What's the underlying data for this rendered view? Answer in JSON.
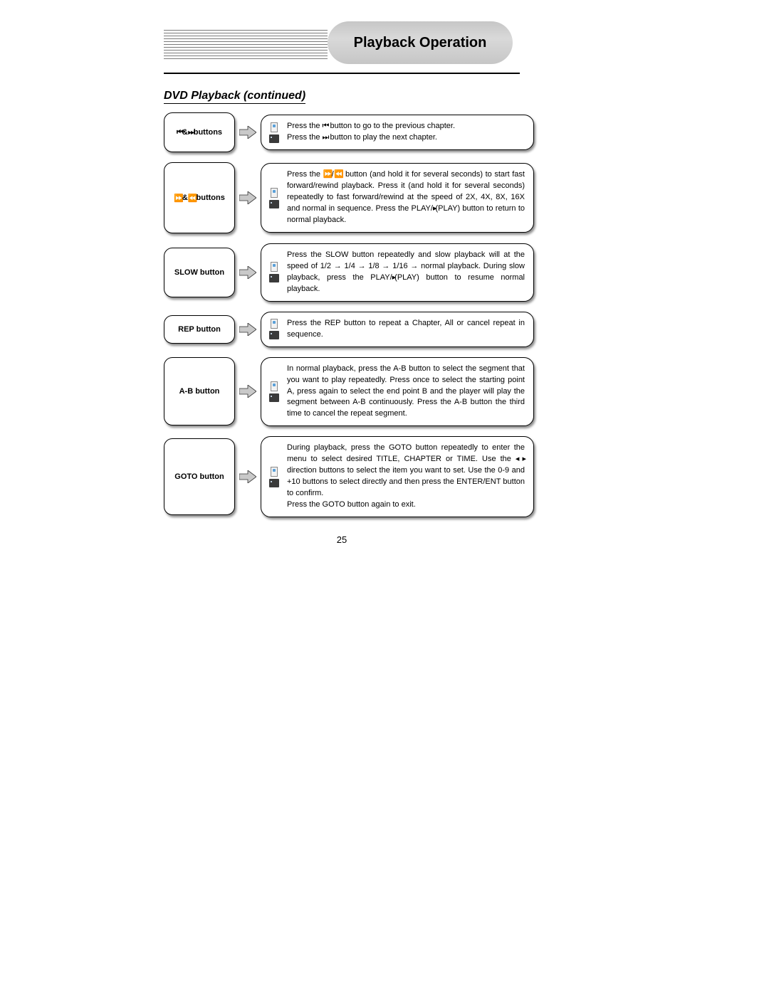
{
  "header": {
    "title": "Playback Operation",
    "subtitle": "DVD Playback (continued)"
  },
  "page_number": "25",
  "symbols": {
    "prev_chapter": "⏮",
    "next_chapter": "⏭",
    "ffwd": "⏩",
    "rwnd": "⏪",
    "play": "▸",
    "left": "◂",
    "right": "▸",
    "amp": "&"
  },
  "rows": [
    {
      "label_parts": [
        "⏮",
        "&",
        "⏭",
        " buttons"
      ],
      "label_min_height": 56,
      "desc_parts": [
        "Press the ",
        "⏮",
        " button to go to the previous chapter.<br>",
        "Press the ",
        "⏭",
        " button to play the next chapter."
      ]
    },
    {
      "label_parts": [
        "⏩",
        "&",
        "⏪",
        " buttons"
      ],
      "label_min_height": 100,
      "desc_parts": [
        "Press the ",
        "⏩",
        "/",
        "⏪",
        " button (and hold it for several seconds) to start fast forward/rewind playback. Press it (and hold it for several seconds) repeatedly to fast forward/rewind at the speed of 2X, 4X, 8X, 16X and normal in sequence. Press the PLAY/",
        "▸",
        "(PLAY) button to return to normal playback."
      ]
    },
    {
      "label_parts": [
        "SLOW button"
      ],
      "label_min_height": 70,
      "desc_parts": [
        "Press the SLOW button repeatedly and slow playback will at the speed of 1/2 → 1/4 → 1/8 → 1/16 → normal playback. During slow playback, press the PLAY/",
        "▸",
        "(PLAY) button to resume normal playback."
      ]
    },
    {
      "label_parts": [
        "REP button"
      ],
      "label_min_height": 40,
      "desc_parts": [
        "Press the REP button to repeat a Chapter, All or cancel repeat in sequence."
      ]
    },
    {
      "label_parts": [
        "A-B button"
      ],
      "label_min_height": 96,
      "desc_parts": [
        "In normal playback, press the A-B button to select the segment that you want to play repeatedly. Press once to select the starting point A, press again to select the end point B and the player will play the segment between A-B continuously. Press the A-B button the third time to cancel the repeat segment."
      ]
    },
    {
      "label_parts": [
        "GOTO button"
      ],
      "label_min_height": 108,
      "desc_parts": [
        "During playback, press the GOTO button repeatedly to enter the menu to select desired TITLE, CHAPTER or TIME. Use the ",
        "◂",
        " ",
        "▸",
        " direction buttons to select the item you want to set. Use the 0-9 and +10 buttons to select directly and then press the ENTER/ENT button to confirm.<br>Press the GOTO button again to exit."
      ]
    }
  ],
  "style": {
    "arrow_fill": "#c9c9c9",
    "arrow_stroke": "#333333"
  }
}
